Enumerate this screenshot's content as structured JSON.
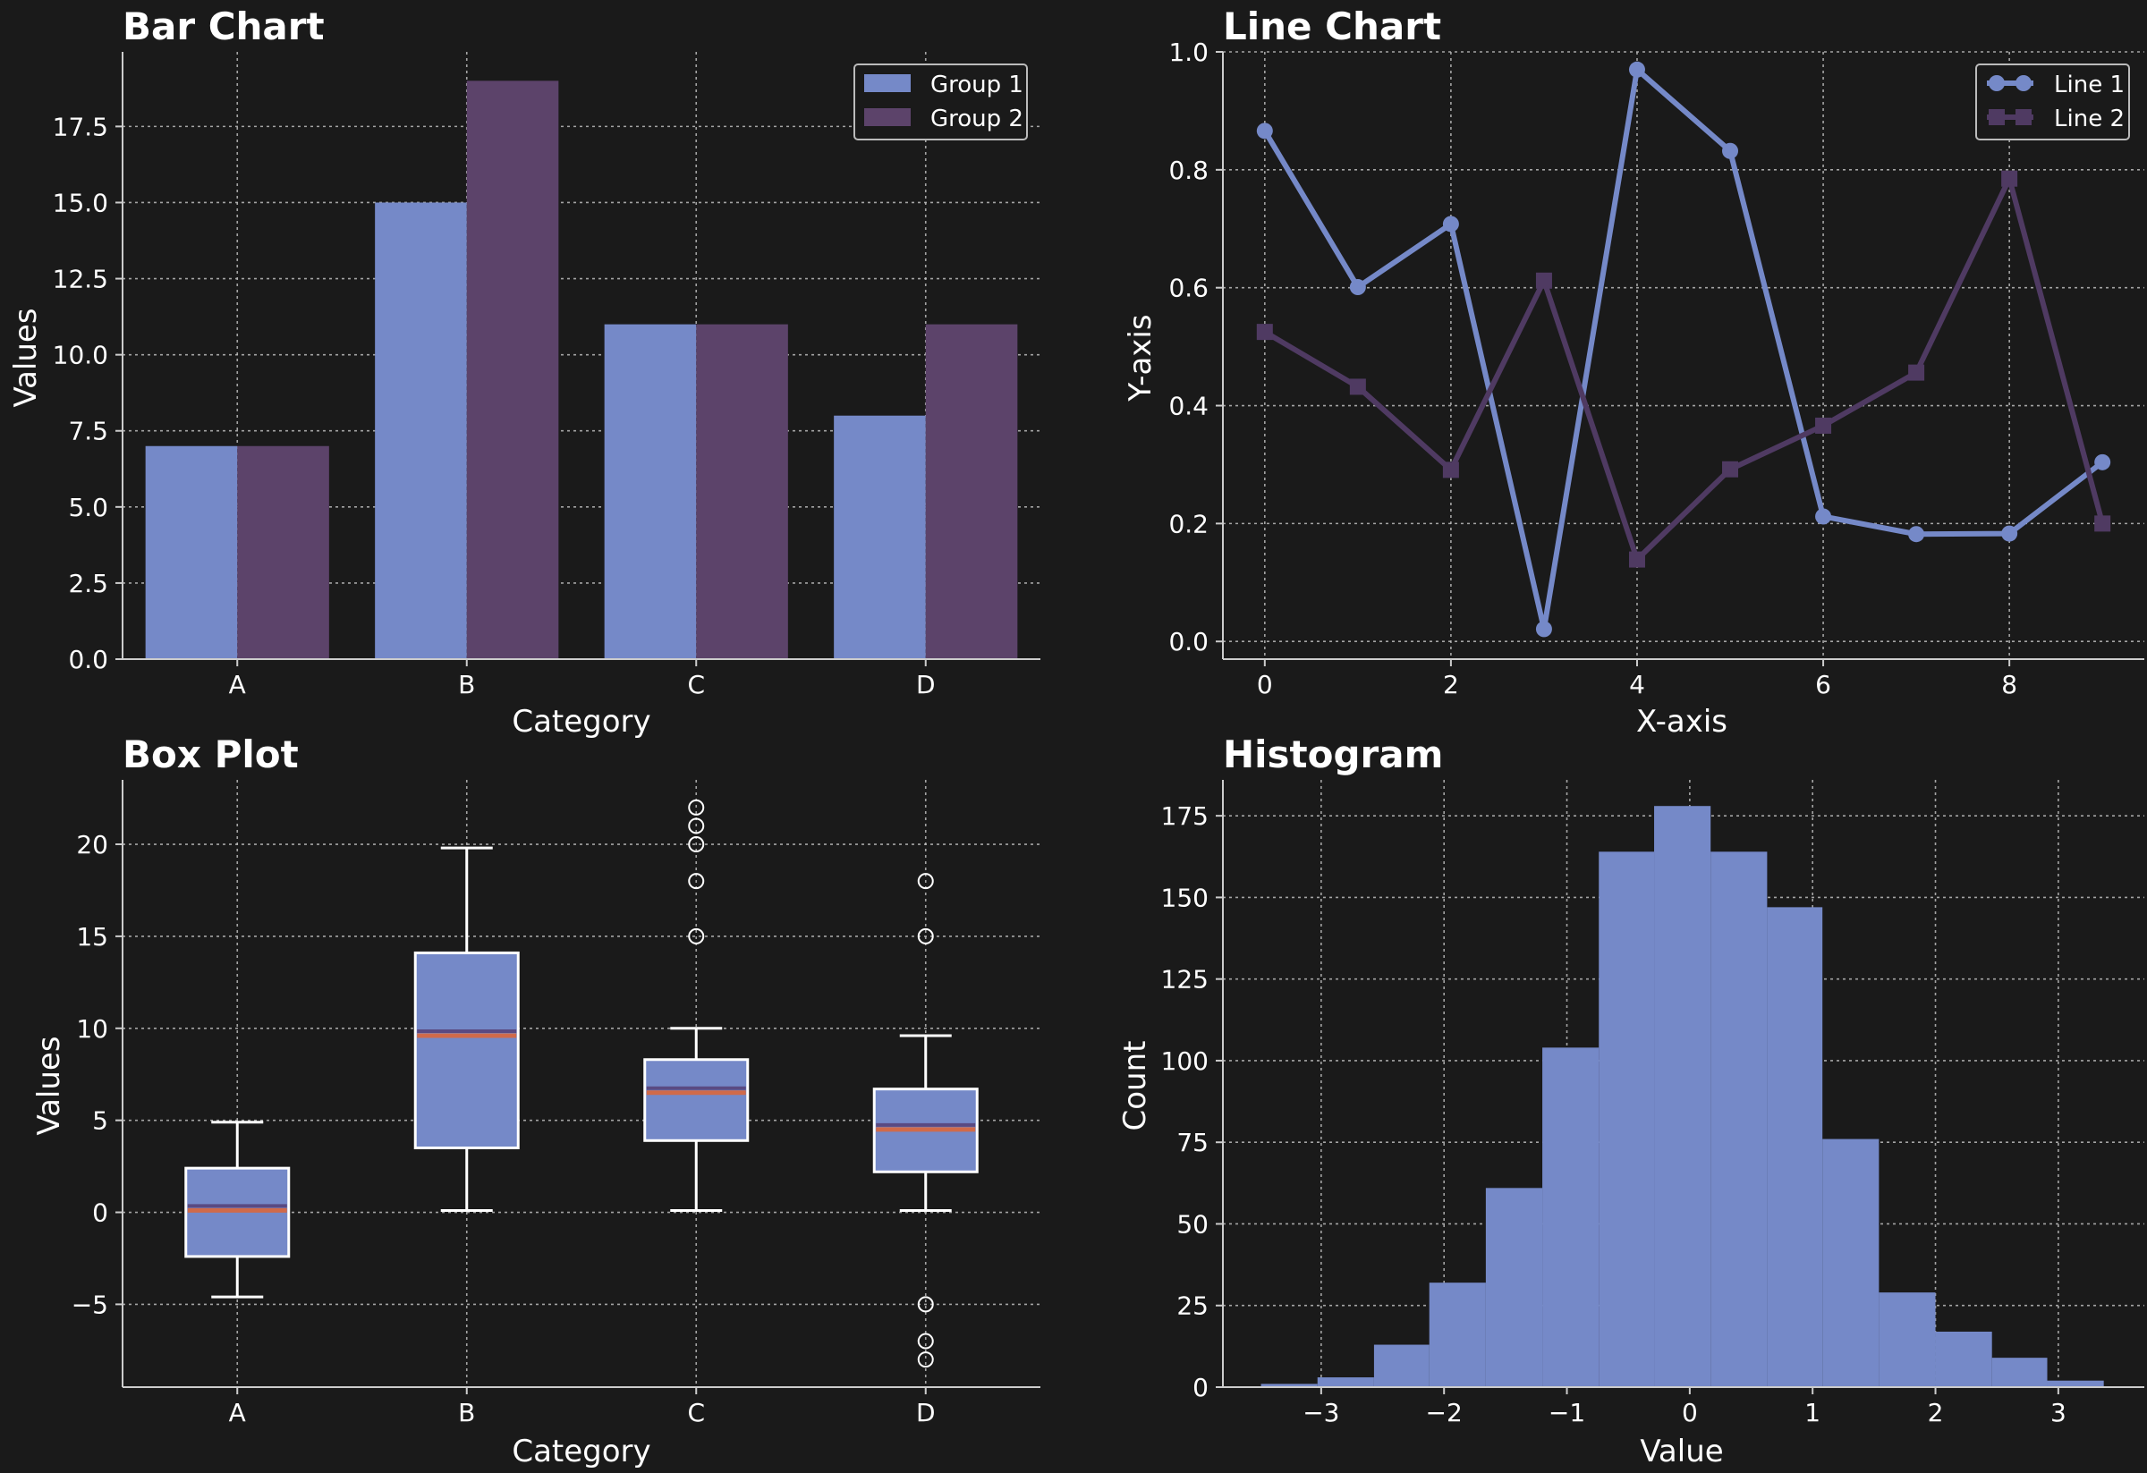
{
  "colors": {
    "background": "#1a1a1a",
    "series1": "#7589c8",
    "series2": "#5c436a",
    "line2": "#4f3a62",
    "median": "#d06a4a",
    "text": "#ffffff",
    "grid": "#bdbdbd"
  },
  "chart_data": [
    {
      "id": "bar",
      "type": "bar",
      "title": "Bar Chart",
      "xlabel": "Category",
      "ylabel": "Values",
      "categories": [
        "A",
        "B",
        "C",
        "D"
      ],
      "series": [
        {
          "name": "Group 1",
          "values": [
            7,
            15,
            11,
            8
          ]
        },
        {
          "name": "Group 2",
          "values": [
            7,
            19,
            11,
            11
          ]
        }
      ],
      "ylim": [
        0,
        19.95
      ],
      "yticks": [
        "0.0",
        "2.5",
        "5.0",
        "7.5",
        "10.0",
        "12.5",
        "15.0",
        "17.5"
      ],
      "grid": true,
      "legend": "top-right"
    },
    {
      "id": "line",
      "type": "line",
      "title": "Line Chart",
      "xlabel": "X-axis",
      "ylabel": "Y-axis",
      "x": [
        0,
        1,
        2,
        3,
        4,
        5,
        6,
        7,
        8,
        9
      ],
      "series": [
        {
          "name": "Line 1",
          "marker": "circle",
          "values": [
            0.866,
            0.601,
            0.708,
            0.021,
            0.97,
            0.832,
            0.212,
            0.182,
            0.183,
            0.304
          ]
        },
        {
          "name": "Line 2",
          "marker": "square",
          "values": [
            0.525,
            0.432,
            0.291,
            0.612,
            0.139,
            0.292,
            0.366,
            0.456,
            0.785,
            0.2
          ]
        }
      ],
      "xlim": [
        -0.45,
        9.45
      ],
      "ylim": [
        -0.03,
        1.0
      ],
      "xticks": [
        "0",
        "2",
        "4",
        "6",
        "8"
      ],
      "yticks": [
        "0.0",
        "0.2",
        "0.4",
        "0.6",
        "0.8",
        "1.0"
      ],
      "grid": true,
      "legend": "top-right"
    },
    {
      "id": "box",
      "type": "box",
      "title": "Box Plot",
      "xlabel": "Category",
      "ylabel": "Values",
      "categories": [
        "A",
        "B",
        "C",
        "D"
      ],
      "boxes": [
        {
          "whisker_low": -4.6,
          "q1": -2.4,
          "median": 0.2,
          "q3": 2.4,
          "whisker_high": 4.9,
          "outliers": []
        },
        {
          "whisker_low": 0.1,
          "q1": 3.5,
          "median": 9.7,
          "q3": 14.1,
          "whisker_high": 19.8,
          "outliers": []
        },
        {
          "whisker_low": 0.1,
          "q1": 3.9,
          "median": 6.6,
          "q3": 8.3,
          "whisker_high": 10.0,
          "outliers": [
            15.0,
            18.0,
            20.0,
            21.0,
            22.0
          ]
        },
        {
          "whisker_low": 0.1,
          "q1": 2.2,
          "median": 4.6,
          "q3": 6.7,
          "whisker_high": 9.6,
          "outliers": [
            18.0,
            15.0,
            -5.0,
            -7.0,
            -8.0
          ]
        }
      ],
      "ylim": [
        -9.5,
        23.5
      ],
      "yticks": [
        "−5",
        "0",
        "5",
        "10",
        "15",
        "20"
      ],
      "grid": true
    },
    {
      "id": "hist",
      "type": "histogram",
      "title": "Histogram",
      "xlabel": "Value",
      "ylabel": "Count",
      "bin_edges": [
        -3.49,
        -3.03,
        -2.57,
        -2.12,
        -1.66,
        -1.2,
        -0.74,
        -0.29,
        0.17,
        0.63,
        1.08,
        1.54,
        2.0,
        2.46,
        2.91,
        3.37
      ],
      "counts": [
        1,
        3,
        13,
        32,
        61,
        104,
        164,
        178,
        164,
        147,
        76,
        29,
        17,
        9,
        2
      ],
      "xlim": [
        -3.8,
        3.7
      ],
      "ylim": [
        0,
        186
      ],
      "xticks": [
        "−3",
        "−2",
        "−1",
        "0",
        "1",
        "2",
        "3"
      ],
      "yticks": [
        "0",
        "25",
        "50",
        "75",
        "100",
        "125",
        "150",
        "175"
      ],
      "grid": true
    }
  ]
}
